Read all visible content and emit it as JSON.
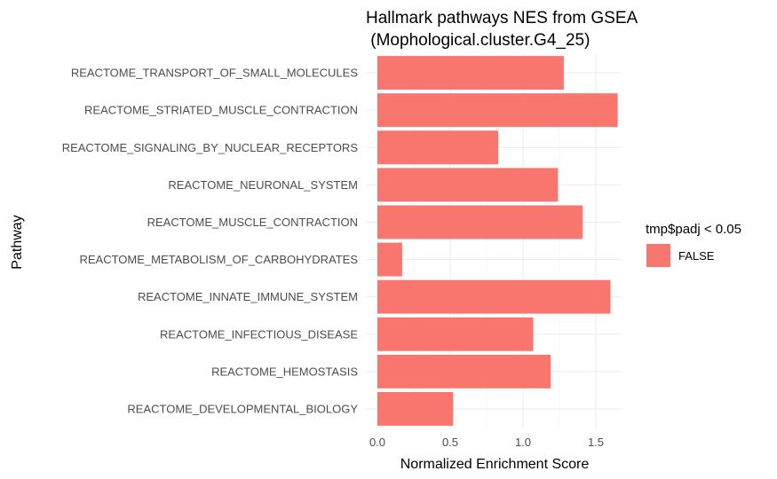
{
  "chart_data": {
    "type": "bar",
    "orientation": "horizontal",
    "title_line1": "Hallmark pathways NES from GSEA",
    "title_line2": " (Mophological.cluster.G4_25)",
    "xlabel": "Normalized Enrichment Score",
    "ylabel": "Pathway",
    "xlim": [
      0,
      1.72
    ],
    "xticks": [
      0.0,
      0.5,
      1.0,
      1.5
    ],
    "xtick_labels": [
      "0.0",
      "0.5",
      "1.0",
      "1.5"
    ],
    "grid": true,
    "legend": {
      "title": "tmp$padj < 0.05",
      "placement": "right",
      "entries": [
        {
          "label": "FALSE",
          "color": "#F8766D"
        }
      ]
    },
    "bar_color": "#F8766D",
    "categories": [
      "REACTOME_TRANSPORT_OF_SMALL_MOLECULES",
      "REACTOME_STRIATED_MUSCLE_CONTRACTION",
      "REACTOME_SIGNALING_BY_NUCLEAR_RECEPTORS",
      "REACTOME_NEURONAL_SYSTEM",
      "REACTOME_MUSCLE_CONTRACTION",
      "REACTOME_METABOLISM_OF_CARBOHYDRATES",
      "REACTOME_INNATE_IMMUNE_SYSTEM",
      "REACTOME_INFECTIOUS_DISEASE",
      "REACTOME_HEMOSTASIS",
      "REACTOME_DEVELOPMENTAL_BIOLOGY"
    ],
    "values": [
      1.28,
      1.65,
      0.83,
      1.24,
      1.41,
      0.17,
      1.6,
      1.07,
      1.19,
      0.52
    ]
  }
}
